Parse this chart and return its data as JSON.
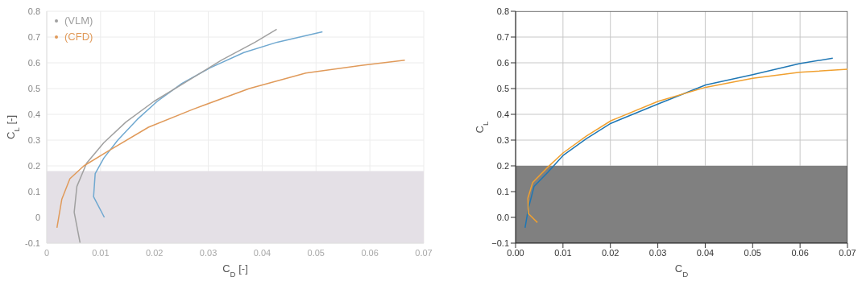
{
  "chart_data": [
    {
      "type": "line",
      "xlabel": "C$_{D}$ [-]",
      "ylabel": "C$_{L}$ [-]",
      "xlim": [
        0,
        0.07
      ],
      "ylim": [
        -0.1,
        0.8
      ],
      "xticks": [
        0,
        0.01,
        0.02,
        0.03,
        0.04,
        0.05,
        0.06,
        0.07
      ],
      "yticks": [
        -0.1,
        0,
        0.1,
        0.2,
        0.3,
        0.4,
        0.5,
        0.6,
        0.7,
        0.8
      ],
      "grid": true,
      "legend": "top left",
      "bands": [
        {
          "axis": "y",
          "from": -0.1,
          "to": 0.18,
          "color": "#e4e0e6"
        }
      ],
      "series": [
        {
          "color": "#6fa8d0",
          "x": [
            0.0107,
            0.0087,
            0.009,
            0.0106,
            0.0132,
            0.0168,
            0.0205,
            0.0251,
            0.0303,
            0.0366,
            0.0428,
            0.0512
          ],
          "values": [
            0.0,
            0.08,
            0.17,
            0.23,
            0.3,
            0.38,
            0.45,
            0.52,
            0.58,
            0.64,
            0.68,
            0.72
          ]
        },
        {
          "name": "(VLM)",
          "color": "#a0a0a0",
          "x": [
            0.0062,
            0.0051,
            0.0056,
            0.0074,
            0.0106,
            0.0147,
            0.0199,
            0.0262,
            0.0324,
            0.0387,
            0.0427
          ],
          "values": [
            -0.1,
            0.02,
            0.12,
            0.21,
            0.29,
            0.37,
            0.45,
            0.53,
            0.61,
            0.68,
            0.73
          ]
        },
        {
          "name": "(CFD)",
          "color": "#e09a5a",
          "x": [
            0.0019,
            0.0028,
            0.0043,
            0.0069,
            0.0116,
            0.0189,
            0.0272,
            0.0376,
            0.0481,
            0.0584,
            0.0665
          ],
          "values": [
            -0.04,
            0.07,
            0.15,
            0.2,
            0.26,
            0.35,
            0.42,
            0.5,
            0.56,
            0.59,
            0.61
          ]
        }
      ]
    },
    {
      "type": "line",
      "xlabel": "C$_{D}$",
      "ylabel": "C$_{L}$",
      "xlim": [
        0,
        0.07
      ],
      "ylim": [
        -0.1,
        0.8
      ],
      "xticks": [
        {
          "value": 0,
          "label": "0.00"
        },
        {
          "value": 0.01,
          "label": "0.01"
        },
        {
          "value": 0.02,
          "label": "0.02"
        },
        {
          "value": 0.03,
          "label": "0.03"
        },
        {
          "value": 0.04,
          "label": "0.04"
        },
        {
          "value": 0.05,
          "label": "0.05"
        },
        {
          "value": 0.06,
          "label": "0.06"
        },
        {
          "value": 0.07,
          "label": "0.07"
        }
      ],
      "yticks": [
        {
          "value": -0.1,
          "label": "−0.1"
        },
        {
          "value": 0,
          "label": "0.0"
        },
        0.1,
        0.2,
        0.3,
        0.4,
        0.5,
        0.6,
        0.7,
        0.8
      ],
      "grid": true,
      "bands": [
        {
          "axis": "y",
          "from": -0.1,
          "to": 0.2,
          "color": "#808080"
        }
      ],
      "series": [
        {
          "color": "#1f77b4",
          "x": [
            0.002,
            0.0027,
            0.0039,
            0.0068,
            0.01,
            0.0149,
            0.0201,
            0.03,
            0.0401,
            0.05,
            0.0599,
            0.0669
          ],
          "values": [
            -0.04,
            0.035,
            0.12,
            0.175,
            0.24,
            0.305,
            0.365,
            0.44,
            0.514,
            0.554,
            0.597,
            0.618
          ]
        },
        {
          "color": "#f0a030",
          "x": [
            0.0046,
            0.0027,
            0.0026,
            0.0036,
            0.0068,
            0.01,
            0.0149,
            0.0201,
            0.03,
            0.0401,
            0.05,
            0.0599,
            0.07
          ],
          "values": [
            -0.02,
            0.015,
            0.075,
            0.135,
            0.195,
            0.25,
            0.315,
            0.375,
            0.45,
            0.505,
            0.54,
            0.563,
            0.575
          ]
        }
      ]
    }
  ]
}
